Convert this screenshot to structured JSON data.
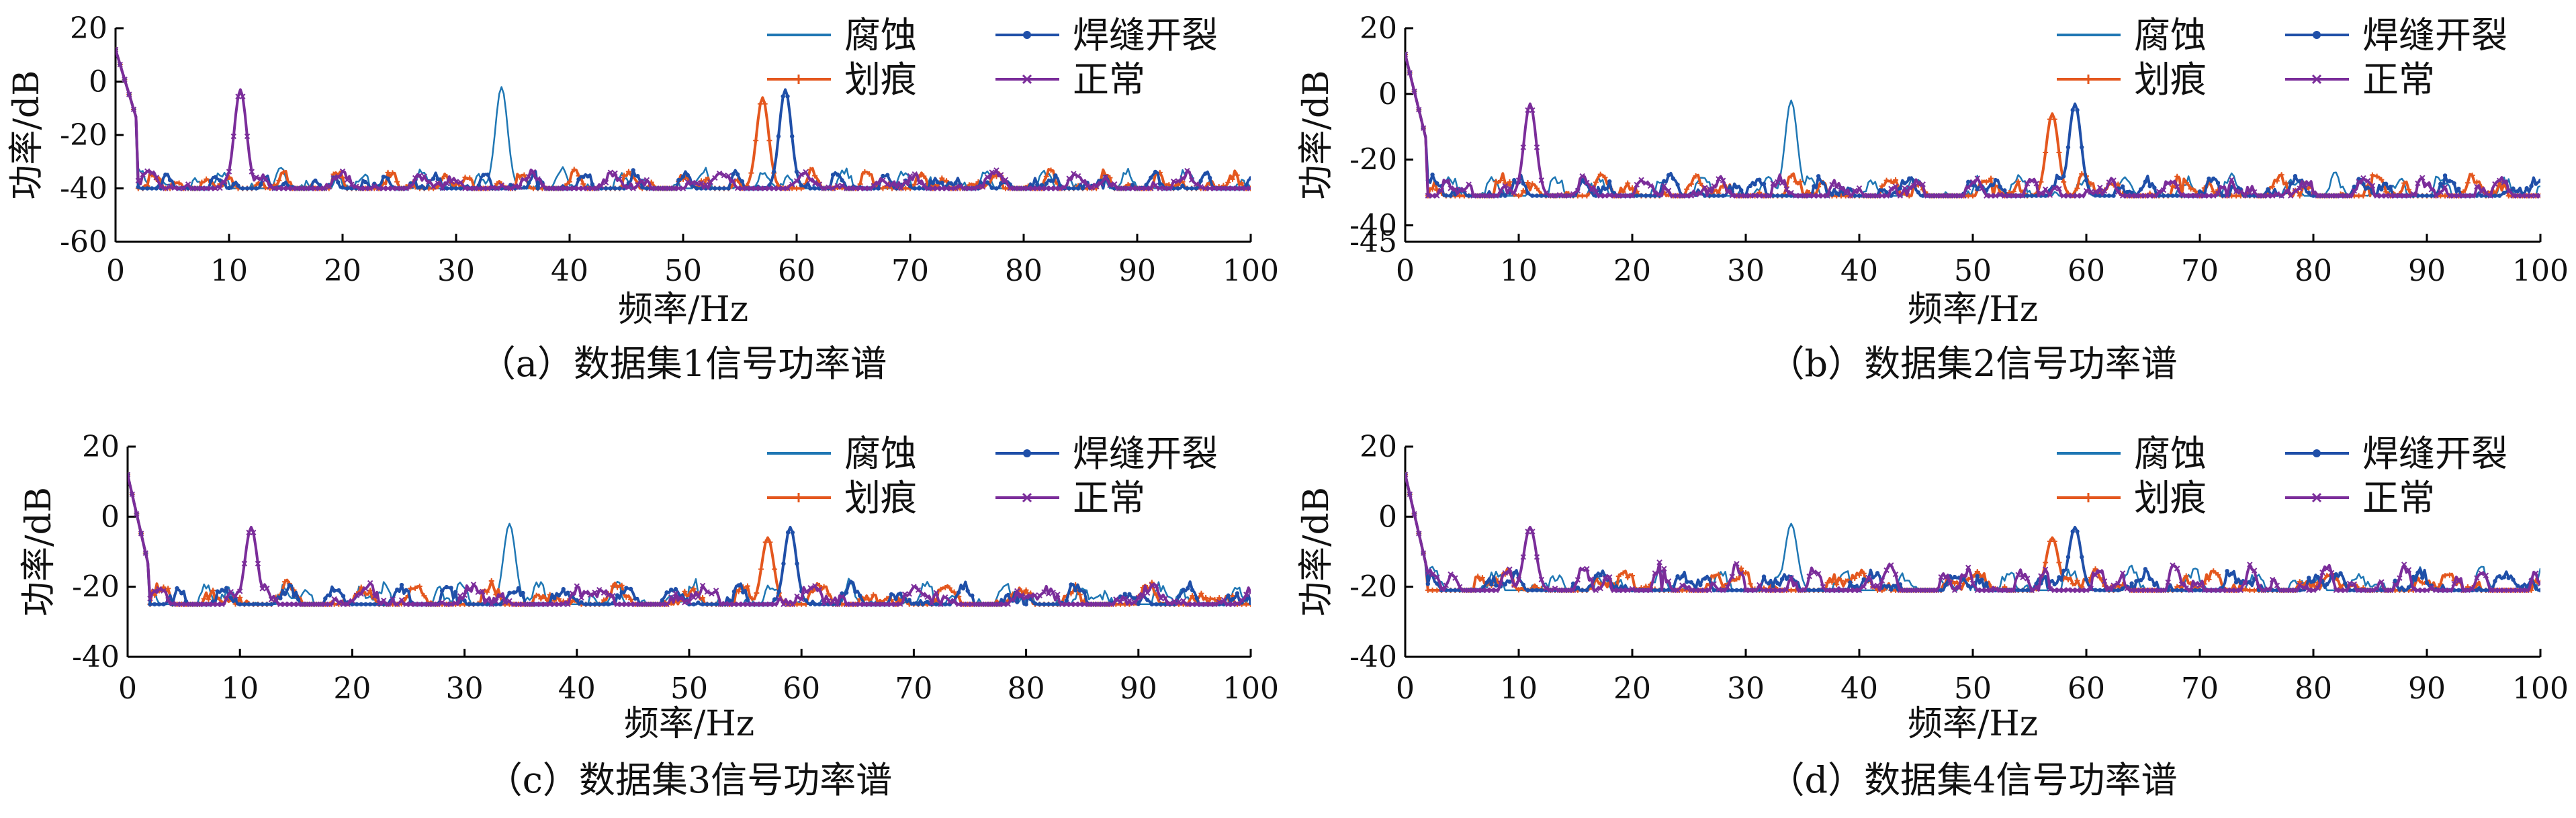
{
  "chart_data": [
    {
      "type": "line",
      "caption": "（a）数据集1信号功率谱",
      "xlabel": "频率/Hz",
      "ylabel": "功率/dB",
      "xlim": [
        0,
        100
      ],
      "ylim": [
        -60,
        20
      ],
      "x_ticks": [
        0,
        10,
        20,
        30,
        40,
        50,
        60,
        70,
        80,
        90,
        100
      ],
      "y_ticks": [
        20,
        0,
        -20,
        -40,
        -60
      ],
      "legend_position": "top-right",
      "baseline": -40,
      "peaks": {
        "腐蚀": [
          34,
          -2
        ],
        "划痕": [
          57,
          -6
        ],
        "焊缝开裂": [
          59,
          -3
        ],
        "正常": [
          11,
          -3
        ]
      },
      "series": [
        {
          "name": "腐蚀",
          "color": "#1f77b4",
          "marker": "none"
        },
        {
          "name": "划痕",
          "color": "#e4571e",
          "marker": "plus"
        },
        {
          "name": "焊缝开裂",
          "color": "#1f4fa8",
          "marker": "dot"
        },
        {
          "name": "正常",
          "color": "#7b2d9a",
          "marker": "x"
        }
      ]
    },
    {
      "type": "line",
      "caption": "（b）数据集2信号功率谱",
      "xlabel": "频率/Hz",
      "ylabel": "功率/dB",
      "xlim": [
        0,
        100
      ],
      "ylim": [
        -45,
        20
      ],
      "x_ticks": [
        0,
        10,
        20,
        30,
        40,
        50,
        60,
        70,
        80,
        90,
        100
      ],
      "y_ticks": [
        20,
        0,
        -20,
        -40,
        -45
      ],
      "legend_position": "top-right",
      "baseline": -31,
      "peaks": {
        "腐蚀": [
          34,
          -2
        ],
        "划痕": [
          57,
          -6
        ],
        "焊缝开裂": [
          59,
          -3
        ],
        "正常": [
          11,
          -3
        ]
      },
      "series": [
        {
          "name": "腐蚀",
          "color": "#1f77b4",
          "marker": "none"
        },
        {
          "name": "划痕",
          "color": "#e4571e",
          "marker": "plus"
        },
        {
          "name": "焊缝开裂",
          "color": "#1f4fa8",
          "marker": "dot"
        },
        {
          "name": "正常",
          "color": "#7b2d9a",
          "marker": "x"
        }
      ]
    },
    {
      "type": "line",
      "caption": "（c）数据集3信号功率谱",
      "xlabel": "频率/Hz",
      "ylabel": "功率/dB",
      "xlim": [
        0,
        100
      ],
      "ylim": [
        -40,
        20
      ],
      "x_ticks": [
        0,
        10,
        20,
        30,
        40,
        50,
        60,
        70,
        80,
        90,
        100
      ],
      "y_ticks": [
        20,
        0,
        -20,
        -40
      ],
      "legend_position": "top-right",
      "baseline": -25,
      "peaks": {
        "腐蚀": [
          34,
          -2
        ],
        "划痕": [
          57,
          -6
        ],
        "焊缝开裂": [
          59,
          -3
        ],
        "正常": [
          11,
          -3
        ]
      },
      "series": [
        {
          "name": "腐蚀",
          "color": "#1f77b4",
          "marker": "none"
        },
        {
          "name": "划痕",
          "color": "#e4571e",
          "marker": "plus"
        },
        {
          "name": "焊缝开裂",
          "color": "#1f4fa8",
          "marker": "dot"
        },
        {
          "name": "正常",
          "color": "#7b2d9a",
          "marker": "x"
        }
      ]
    },
    {
      "type": "line",
      "caption": "（d）数据集4信号功率谱",
      "xlabel": "频率/Hz",
      "ylabel": "功率/dB",
      "xlim": [
        0,
        100
      ],
      "ylim": [
        -40,
        20
      ],
      "x_ticks": [
        0,
        10,
        20,
        30,
        40,
        50,
        60,
        70,
        80,
        90,
        100
      ],
      "y_ticks": [
        20,
        0,
        -20,
        -40
      ],
      "legend_position": "top-right",
      "baseline": -21,
      "peaks": {
        "腐蚀": [
          34,
          -2
        ],
        "划痕": [
          57,
          -6
        ],
        "焊缝开裂": [
          59,
          -3
        ],
        "正常": [
          11,
          -3
        ]
      },
      "series": [
        {
          "name": "腐蚀",
          "color": "#1f77b4",
          "marker": "none"
        },
        {
          "name": "划痕",
          "color": "#e4571e",
          "marker": "plus"
        },
        {
          "name": "焊缝开裂",
          "color": "#1f4fa8",
          "marker": "dot"
        },
        {
          "name": "正常",
          "color": "#7b2d9a",
          "marker": "x"
        }
      ]
    }
  ]
}
